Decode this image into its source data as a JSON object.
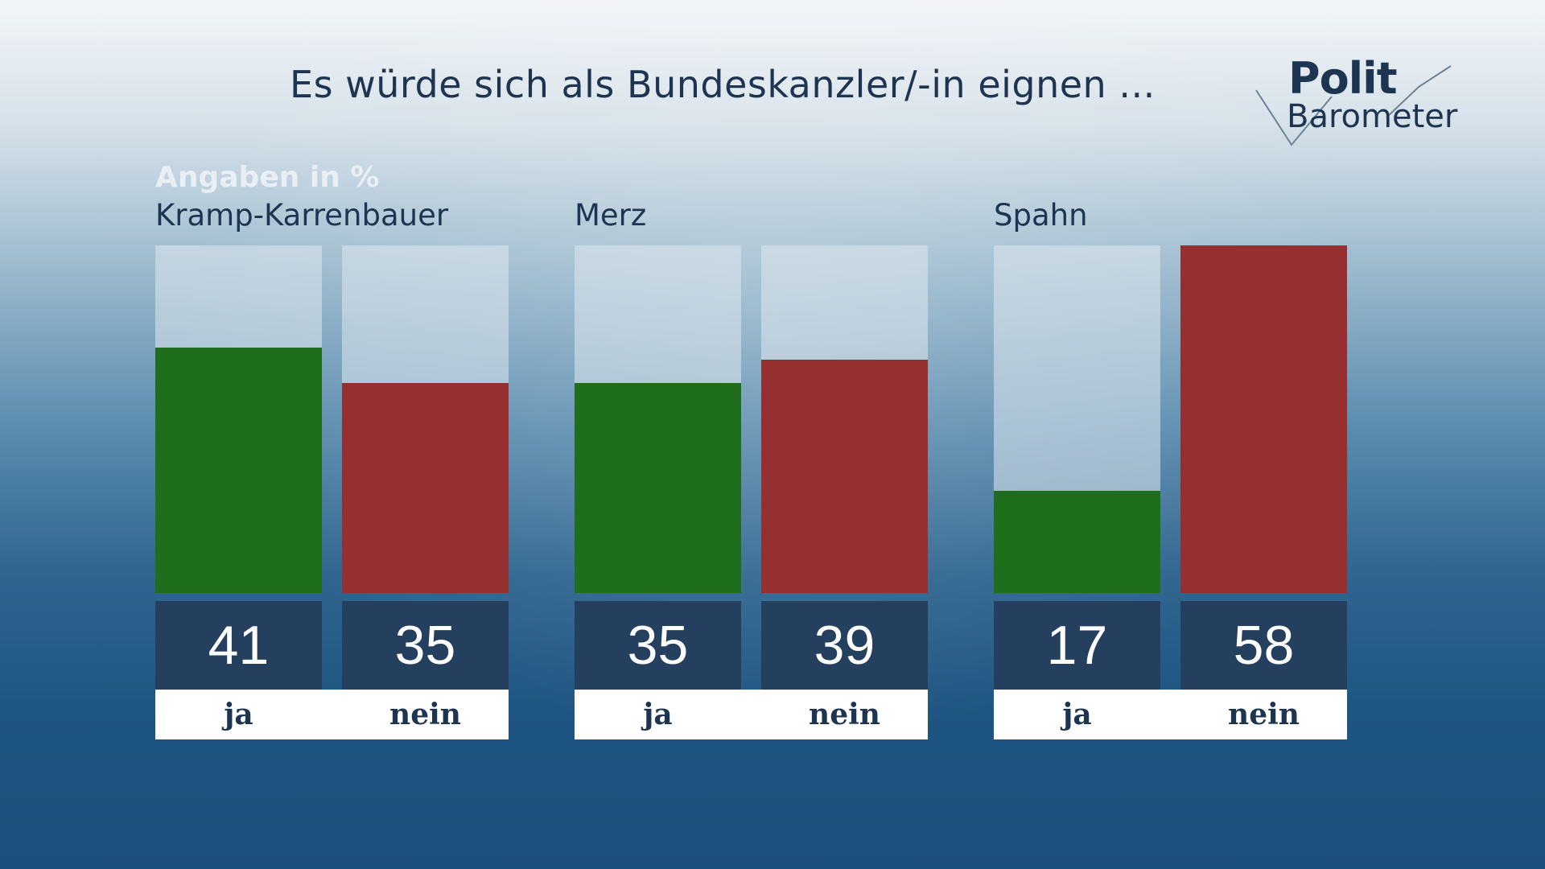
{
  "title": "Es würde sich als Bundeskanzler/-in eignen ...",
  "logo": {
    "line1": "Polit",
    "line2": "Barometer"
  },
  "colors": {
    "ja": "#1e6e1e",
    "nein": "#962f30",
    "value_box": "#253f5e"
  },
  "chart_data": {
    "type": "bar",
    "title": "Es würde sich als Bundeskanzler/-in eignen ...",
    "unit_label": "Angaben in %",
    "ylim": [
      0,
      58
    ],
    "grid": false,
    "groups": [
      {
        "name": "Kramp-Karrenbauer",
        "bars": [
          {
            "label": "ja",
            "value": 41
          },
          {
            "label": "nein",
            "value": 35
          }
        ]
      },
      {
        "name": "Merz",
        "bars": [
          {
            "label": "ja",
            "value": 35
          },
          {
            "label": "nein",
            "value": 39
          }
        ]
      },
      {
        "name": "Spahn",
        "bars": [
          {
            "label": "ja",
            "value": 17
          },
          {
            "label": "nein",
            "value": 58
          }
        ]
      }
    ]
  }
}
